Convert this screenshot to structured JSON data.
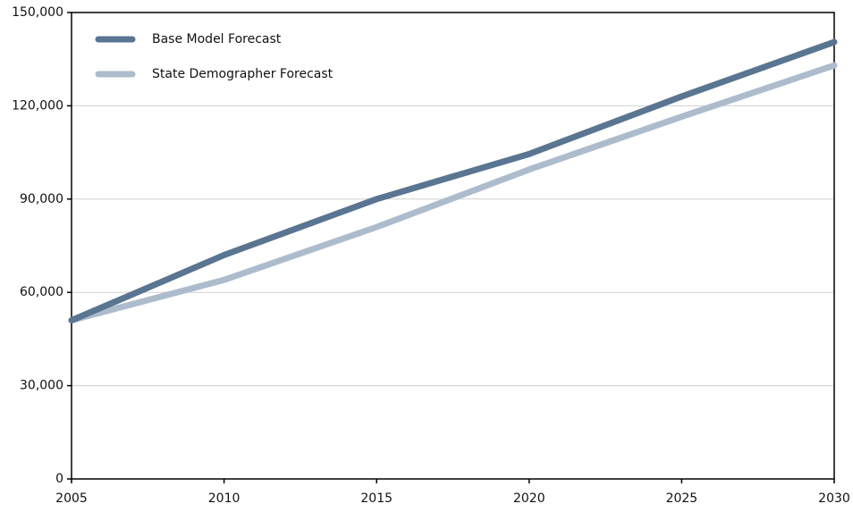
{
  "chart_data": {
    "type": "line",
    "x": [
      2005,
      2010,
      2015,
      2020,
      2025,
      2030
    ],
    "series": [
      {
        "name": "Base Model Forecast",
        "color": "#5a7591",
        "values": [
          51000,
          72000,
          90000,
          104500,
          123000,
          140500
        ]
      },
      {
        "name": "State Demographer Forecast",
        "color": "#adbccd",
        "values": [
          51000,
          64000,
          81000,
          99500,
          116500,
          133000
        ]
      }
    ],
    "xlim": [
      2005,
      2030
    ],
    "xticks": [
      2005,
      2010,
      2015,
      2020,
      2025,
      2030
    ],
    "ylim": [
      0,
      150000
    ],
    "yticks": [
      0,
      {
        "value": 30000,
        "label": "30,000"
      },
      {
        "value": 60000,
        "label": "60,000"
      },
      {
        "value": 90000,
        "label": "90,000"
      },
      {
        "value": 120000,
        "label": "120,000"
      },
      {
        "value": 150000,
        "label": "150,000"
      }
    ],
    "grid": true,
    "legend": "upper left"
  }
}
